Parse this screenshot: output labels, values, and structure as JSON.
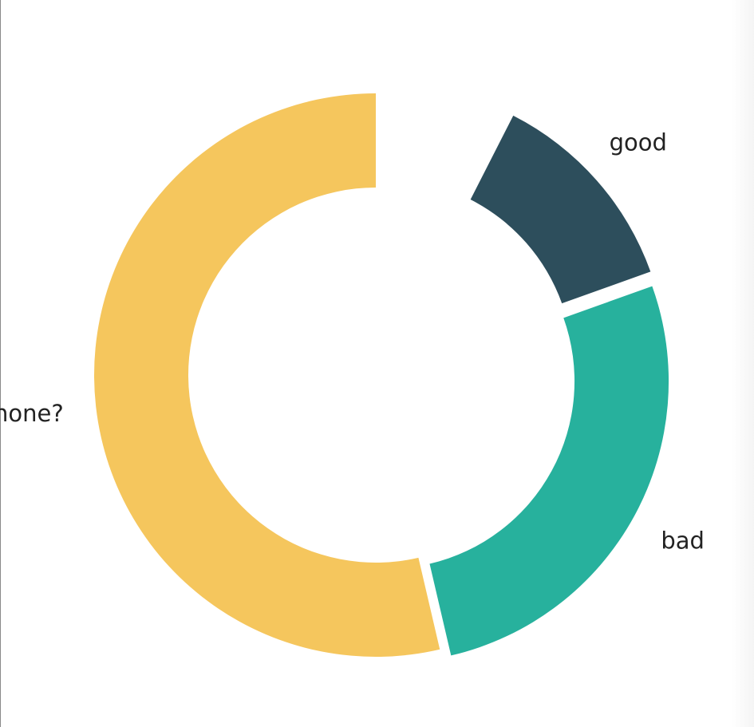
{
  "chart_data": {
    "type": "pie",
    "variant": "donut",
    "start_position": "top",
    "direction": "clockwise",
    "slices": [
      {
        "label": "good",
        "value": 13,
        "color": "#2d4e5c",
        "exploded": true
      },
      {
        "label": "bad",
        "value": 29,
        "color": "#27b19d",
        "exploded": true
      },
      {
        "label": "none?",
        "value": 58,
        "color": "#f5c65d",
        "exploded": false
      }
    ],
    "gap_before_first_slice": 0.15,
    "legend": "none",
    "value_labels": "none"
  }
}
